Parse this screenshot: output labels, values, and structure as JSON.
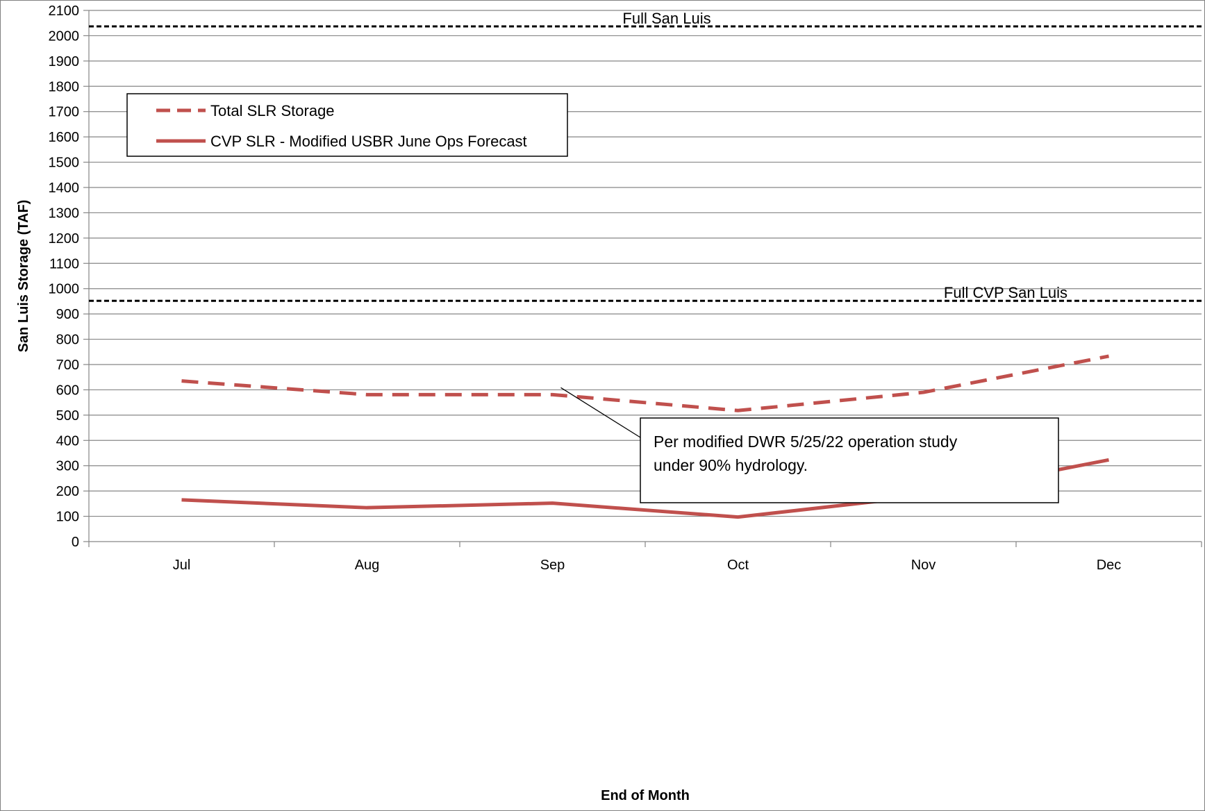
{
  "chart_data": {
    "type": "line",
    "categories": [
      "Jul",
      "Aug",
      "Sep",
      "Oct",
      "Nov",
      "Dec"
    ],
    "series": [
      {
        "name": "Total SLR Storage",
        "values": [
          635,
          581,
          581,
          518,
          590,
          733
        ],
        "style": "dashed",
        "color": "#c0504d"
      },
      {
        "name": "CVP SLR - Modified USBR June Ops Forecast",
        "values": [
          165,
          134,
          152,
          97,
          180,
          323
        ],
        "style": "solid",
        "color": "#c0504d"
      }
    ],
    "reference_lines": [
      {
        "label": "Full  San Luis",
        "value": 2037
      },
      {
        "label": "Full CVP San Luis",
        "value": 952
      }
    ],
    "annotation": {
      "lines": [
        "Per modified DWR 5/25/22 operation study",
        "under 90% hydrology."
      ],
      "points_to_category": "Sep",
      "points_to_value": 581
    },
    "ylim": [
      0,
      2100
    ],
    "ytick_step": 100,
    "xlabel": "End of Month",
    "ylabel": "San Luis Storage (TAF)",
    "grid": true,
    "legend_position": "top-left"
  }
}
